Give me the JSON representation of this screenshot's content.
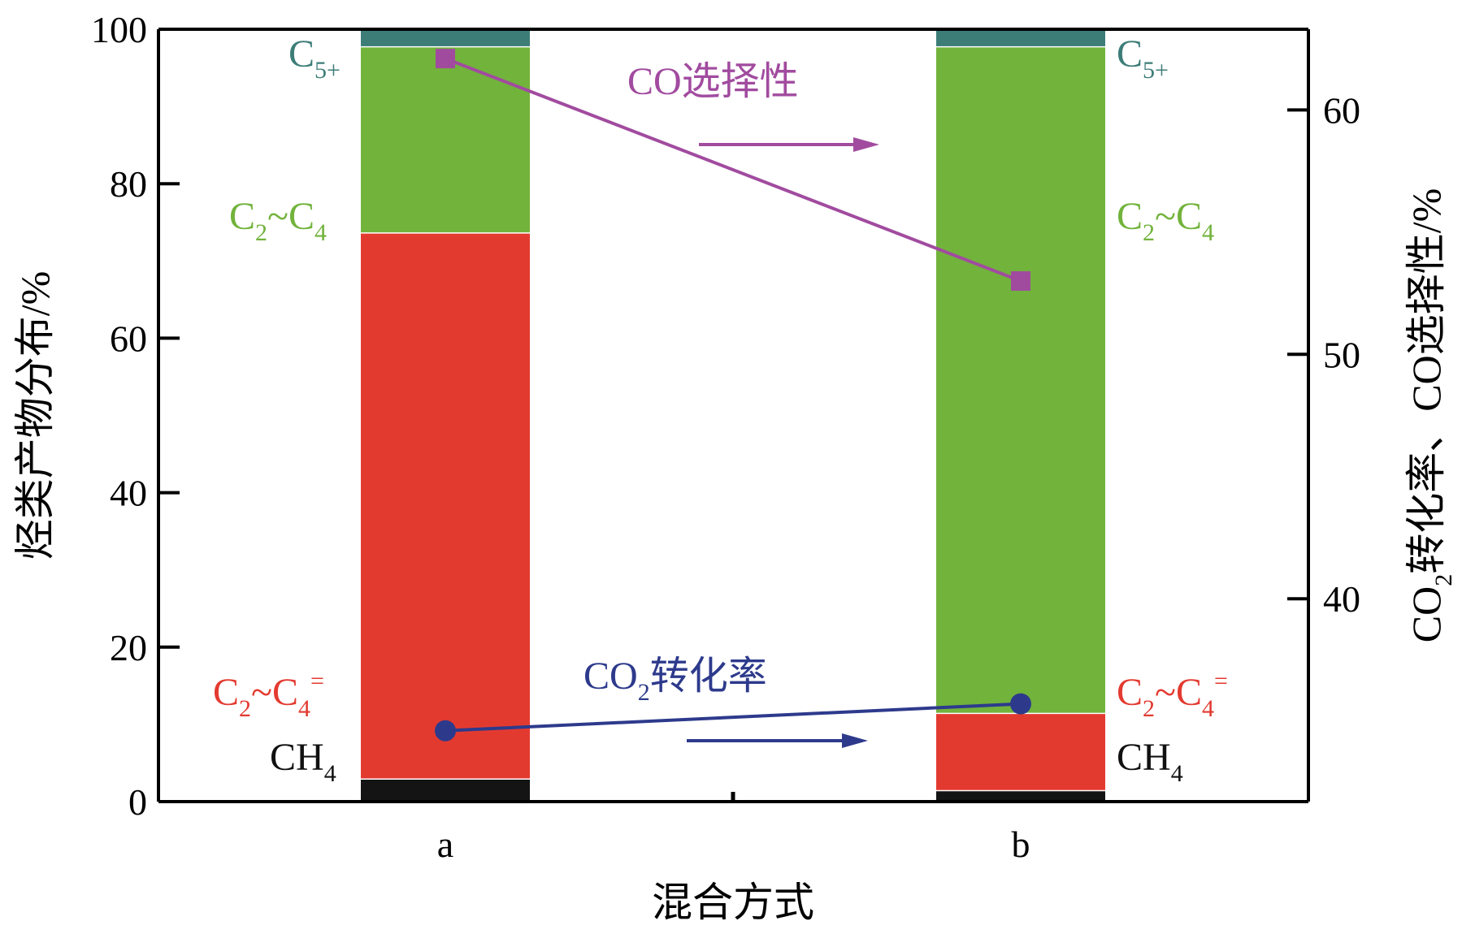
{
  "chart_data": {
    "type": "bar",
    "stacked": true,
    "categories": [
      "a",
      "b"
    ],
    "xlabel": "混合方式",
    "ylabel": "烃类产物分布/%",
    "ylim": [
      0,
      100
    ],
    "yticks": [
      "0",
      "20",
      "40",
      "60",
      "80",
      "100"
    ],
    "y2label": "CO2转化率、CO选择性/%",
    "y2lim": [
      31.7,
      63.3
    ],
    "y2ticks": [
      "40",
      "50",
      "60"
    ],
    "segment_labels": [
      "CH4",
      "C2~C4=",
      "C2~C4",
      "C5+"
    ],
    "series": [
      {
        "name": "CH4",
        "values": [
          3.0,
          1.5
        ],
        "color": "#141414"
      },
      {
        "name": "C2~C4=",
        "values": [
          70.7,
          10.0
        ],
        "color": "#e33a30"
      },
      {
        "name": "C2~C4",
        "values": [
          24.1,
          86.3
        ],
        "color": "#72b33c"
      },
      {
        "name": "C5+",
        "values": [
          2.2,
          2.2
        ],
        "color": "#3d7d78"
      }
    ],
    "line_series": [
      {
        "name": "CO选择性",
        "axis": "right",
        "values": [
          62.1,
          53.0
        ],
        "marker": "square",
        "color": "#a14b9f"
      },
      {
        "name": "CO2转化率",
        "axis": "right",
        "values": [
          34.6,
          35.7
        ],
        "marker": "circle",
        "color": "#2d3a8c"
      }
    ]
  }
}
